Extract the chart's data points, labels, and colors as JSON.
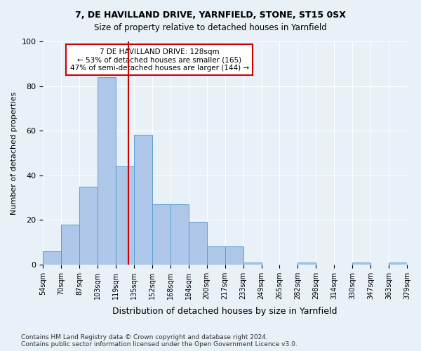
{
  "title1": "7, DE HAVILLAND DRIVE, YARNFIELD, STONE, ST15 0SX",
  "title2": "Size of property relative to detached houses in Yarnfield",
  "xlabel": "Distribution of detached houses by size in Yarnfield",
  "ylabel": "Number of detached properties",
  "footnote1": "Contains HM Land Registry data © Crown copyright and database right 2024.",
  "footnote2": "Contains public sector information licensed under the Open Government Licence v3.0.",
  "annotation_line1": "7 DE HAVILLAND DRIVE: 128sqm",
  "annotation_line2": "← 53% of detached houses are smaller (165)",
  "annotation_line3": "47% of semi-detached houses are larger (144) →",
  "bin_labels": [
    "54sqm",
    "70sqm",
    "87sqm",
    "103sqm",
    "119sqm",
    "135sqm",
    "152sqm",
    "168sqm",
    "184sqm",
    "200sqm",
    "217sqm",
    "233sqm",
    "249sqm",
    "265sqm",
    "282sqm",
    "298sqm",
    "314sqm",
    "330sqm",
    "347sqm",
    "363sqm",
    "379sqm"
  ],
  "bar_heights": [
    6,
    18,
    35,
    84,
    44,
    58,
    27,
    27,
    19,
    8,
    8,
    1,
    0,
    0,
    1,
    0,
    0,
    1,
    0,
    1
  ],
  "bar_color": "#aec6e8",
  "bar_edge_color": "#5a9fd4",
  "vline_x": 4.7,
  "vline_color": "#cc0000",
  "background_color": "#e8f0f8",
  "ylim": [
    0,
    100
  ],
  "annotation_box_color": "#ffffff",
  "annotation_box_edge": "#cc0000"
}
